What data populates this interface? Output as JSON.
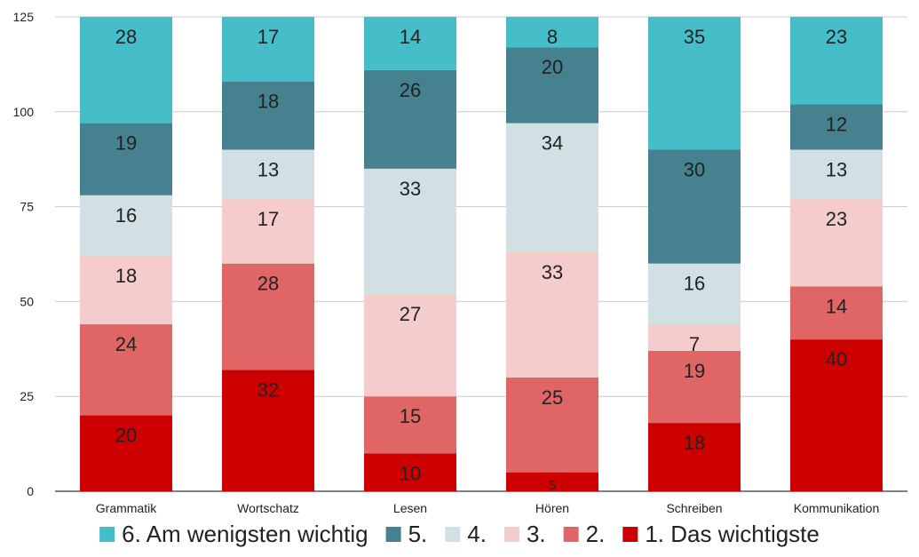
{
  "chart_data": {
    "type": "bar",
    "stacked": true,
    "categories": [
      "Grammatik",
      "Wortschatz",
      "Lesen",
      "Hören",
      "Schreiben",
      "Kommunikation"
    ],
    "series": [
      {
        "name": "1. Das wichtigste",
        "values": [
          20,
          32,
          10,
          5,
          18,
          40
        ],
        "color": "#cc0000"
      },
      {
        "name": "2.",
        "values": [
          24,
          28,
          15,
          25,
          19,
          14
        ],
        "color": "#e06666"
      },
      {
        "name": "3.",
        "values": [
          18,
          17,
          27,
          33,
          7,
          23
        ],
        "color": "#f4cccc"
      },
      {
        "name": "4.",
        "values": [
          16,
          13,
          33,
          34,
          16,
          13
        ],
        "color": "#d0e0e3"
      },
      {
        "name": "5.",
        "values": [
          19,
          18,
          26,
          20,
          30,
          12
        ],
        "color": "#45818e"
      },
      {
        "name": "6. Am wenigsten wichtig",
        "values": [
          28,
          17,
          14,
          8,
          35,
          23
        ],
        "color": "#45bec9"
      }
    ],
    "y_ticks": [
      "0",
      "25",
      "50",
      "75",
      "100",
      "125"
    ],
    "ylim": [
      0,
      125
    ],
    "grid": true,
    "data_labels": true,
    "legend_position": "bottom",
    "legend_order": [
      "6. Am wenigsten wichtig",
      "5.",
      "4.",
      "3.",
      "2.",
      "1. Das wichtigste"
    ]
  }
}
